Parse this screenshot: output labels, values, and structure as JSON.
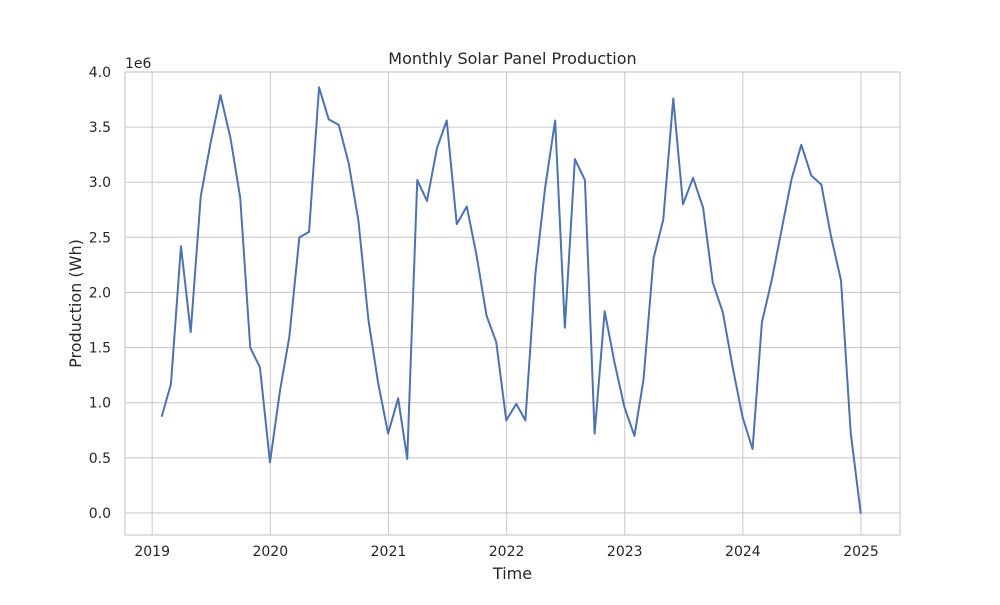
{
  "chart_data": {
    "type": "line",
    "title": "Monthly Solar Panel Production",
    "xlabel": "Time",
    "ylabel": "Production (Wh)",
    "y_multiplier_label": "1e6",
    "y_multiplier": 1000000,
    "xlim": [
      2018.77,
      2025.33
    ],
    "ylim": [
      -0.2,
      4.0
    ],
    "x_ticks": [
      {
        "value": 2019,
        "label": "2019"
      },
      {
        "value": 2020,
        "label": "2020"
      },
      {
        "value": 2021,
        "label": "2021"
      },
      {
        "value": 2022,
        "label": "2022"
      },
      {
        "value": 2023,
        "label": "2023"
      },
      {
        "value": 2024,
        "label": "2024"
      },
      {
        "value": 2025,
        "label": "2025"
      }
    ],
    "y_ticks": [
      {
        "value": 0.0,
        "label": "0.0"
      },
      {
        "value": 0.5,
        "label": "0.5"
      },
      {
        "value": 1.0,
        "label": "1.0"
      },
      {
        "value": 1.5,
        "label": "1.5"
      },
      {
        "value": 2.0,
        "label": "2.0"
      },
      {
        "value": 2.5,
        "label": "2.5"
      },
      {
        "value": 3.0,
        "label": "3.0"
      },
      {
        "value": 3.5,
        "label": "3.5"
      },
      {
        "value": 4.0,
        "label": "4.0"
      }
    ],
    "grid": true,
    "series": [
      {
        "color": "#4c72b0",
        "x": [
          "2019-01-31",
          "2019-02-28",
          "2019-03-31",
          "2019-04-30",
          "2019-05-31",
          "2019-06-30",
          "2019-07-31",
          "2019-08-31",
          "2019-09-30",
          "2019-10-31",
          "2019-11-30",
          "2019-12-31",
          "2020-01-31",
          "2020-02-29",
          "2020-03-31",
          "2020-04-30",
          "2020-05-31",
          "2020-06-30",
          "2020-07-31",
          "2020-08-31",
          "2020-09-30",
          "2020-10-31",
          "2020-11-30",
          "2020-12-31",
          "2021-01-31",
          "2021-02-28",
          "2021-03-31",
          "2021-04-30",
          "2021-05-31",
          "2021-06-30",
          "2021-07-31",
          "2021-08-31",
          "2021-09-30",
          "2021-10-31",
          "2021-11-30",
          "2021-12-31",
          "2022-01-31",
          "2022-02-28",
          "2022-03-31",
          "2022-04-30",
          "2022-05-31",
          "2022-06-30",
          "2022-07-31",
          "2022-08-31",
          "2022-09-30",
          "2022-10-31",
          "2022-11-30",
          "2022-12-31",
          "2023-01-31",
          "2023-02-28",
          "2023-03-31",
          "2023-04-30",
          "2023-05-31",
          "2023-06-30",
          "2023-07-31",
          "2023-08-31",
          "2023-09-30",
          "2023-10-31",
          "2023-11-30",
          "2023-12-31",
          "2024-01-31",
          "2024-02-29",
          "2024-03-31",
          "2024-04-30",
          "2024-05-31",
          "2024-06-30",
          "2024-07-31",
          "2024-08-31",
          "2024-09-30",
          "2024-10-31",
          "2024-11-30",
          "2024-12-31"
        ],
        "y": [
          0.88,
          1.17,
          2.42,
          1.64,
          2.87,
          3.35,
          3.79,
          3.4,
          2.86,
          1.5,
          1.32,
          0.46,
          1.11,
          1.6,
          2.5,
          2.55,
          3.86,
          3.57,
          3.52,
          3.17,
          2.65,
          1.75,
          1.18,
          0.72,
          1.04,
          0.49,
          3.02,
          2.83,
          3.31,
          3.56,
          2.62,
          2.78,
          2.34,
          1.79,
          1.55,
          0.84,
          0.99,
          0.84,
          2.17,
          2.95,
          3.56,
          1.68,
          3.21,
          3.02,
          0.72,
          1.83,
          1.37,
          0.96,
          0.7,
          1.21,
          2.31,
          2.66,
          3.76,
          2.8,
          3.04,
          2.77,
          2.09,
          1.82,
          1.33,
          0.87,
          0.58,
          1.73,
          2.12,
          2.57,
          3.03,
          3.34,
          3.06,
          2.98,
          2.51,
          2.11,
          0.73,
          0.0
        ]
      }
    ]
  }
}
